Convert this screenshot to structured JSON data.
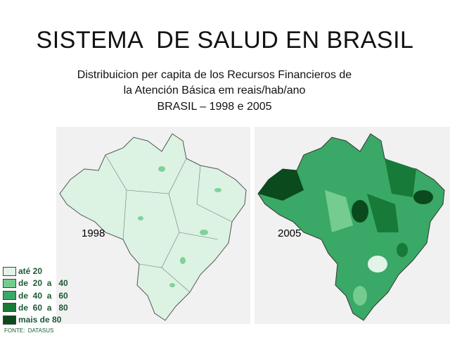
{
  "title": "SISTEMA  DE SALUD EN BRASIL",
  "subtitle": [
    "Distribuicion per capita de los Recursos Financieros de",
    "la Atención Básica em reais/hab/ano",
    "BRASIL – 1998 e 2005"
  ],
  "maps": [
    {
      "label": "1998"
    },
    {
      "label": "2005"
    }
  ],
  "legend": [
    {
      "label": "até 20",
      "color": "#e2f4e8"
    },
    {
      "label": "de  20  a   40",
      "color": "#74cc90"
    },
    {
      "label": "de  40  a   60",
      "color": "#3aa866"
    },
    {
      "label": "de  60  a   80",
      "color": "#187a38"
    },
    {
      "label": "mais de 80",
      "color": "#0a4a1c"
    }
  ],
  "source": "FONTE:  DATASUS"
}
